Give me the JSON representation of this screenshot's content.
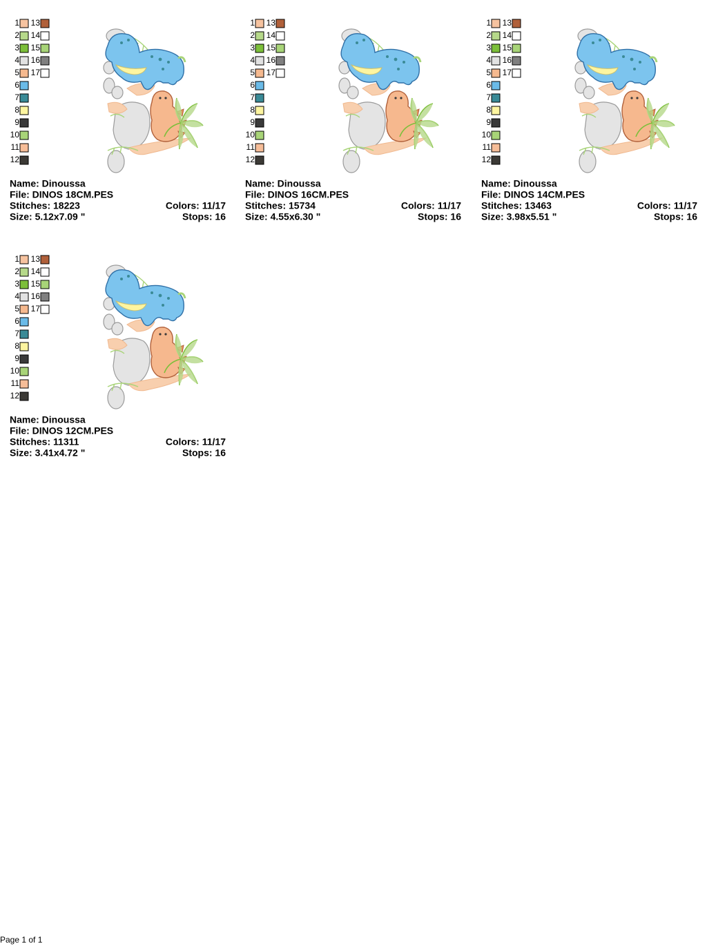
{
  "palette": [
    {
      "number": 1,
      "color": "#f6c3a0"
    },
    {
      "number": 2,
      "color": "#b6d98a"
    },
    {
      "number": 3,
      "color": "#7cbf3a"
    },
    {
      "number": 4,
      "color": "#e2e2e2"
    },
    {
      "number": 5,
      "color": "#f5b98f"
    },
    {
      "number": 6,
      "color": "#6bbbe8"
    },
    {
      "number": 7,
      "color": "#3a8a96"
    },
    {
      "number": 8,
      "color": "#fdf5a0"
    },
    {
      "number": 9,
      "color": "#3a3a3a"
    },
    {
      "number": 10,
      "color": "#a8d478"
    },
    {
      "number": 11,
      "color": "#f6bd98"
    },
    {
      "number": 12,
      "color": "#3c3a36"
    },
    {
      "number": 13,
      "color": "#b0603a"
    },
    {
      "number": 14,
      "color": "#ffffff"
    },
    {
      "number": 15,
      "color": "#a8d478"
    },
    {
      "number": 16,
      "color": "#808080"
    },
    {
      "number": 17,
      "color": "#ffffff"
    }
  ],
  "cards": [
    {
      "name": "Name: Dinoussa",
      "file": "File: DINOS 18CM.PES",
      "stitches": "Stitches: 18223",
      "colors": "Colors: 11/17",
      "size": "Size: 5.12x7.09 \"",
      "stops": "Stops: 16"
    },
    {
      "name": "Name: Dinoussa",
      "file": "File: DINOS 16CM.PES",
      "stitches": "Stitches: 15734",
      "colors": "Colors: 11/17",
      "size": "Size: 4.55x6.30 \"",
      "stops": "Stops: 16"
    },
    {
      "name": "Name: Dinoussa",
      "file": "File: DINOS 14CM.PES",
      "stitches": "Stitches: 13463",
      "colors": "Colors: 11/17",
      "size": "Size: 3.98x5.51 \"",
      "stops": "Stops: 16"
    },
    {
      "name": "Name: Dinoussa",
      "file": "File: DINOS 12CM.PES",
      "stitches": "Stitches: 11311",
      "colors": "Colors: 11/17",
      "size": "Size: 3.41x4.72 \"",
      "stops": "Stops: 16"
    }
  ],
  "footer": "Page 1 of 1"
}
